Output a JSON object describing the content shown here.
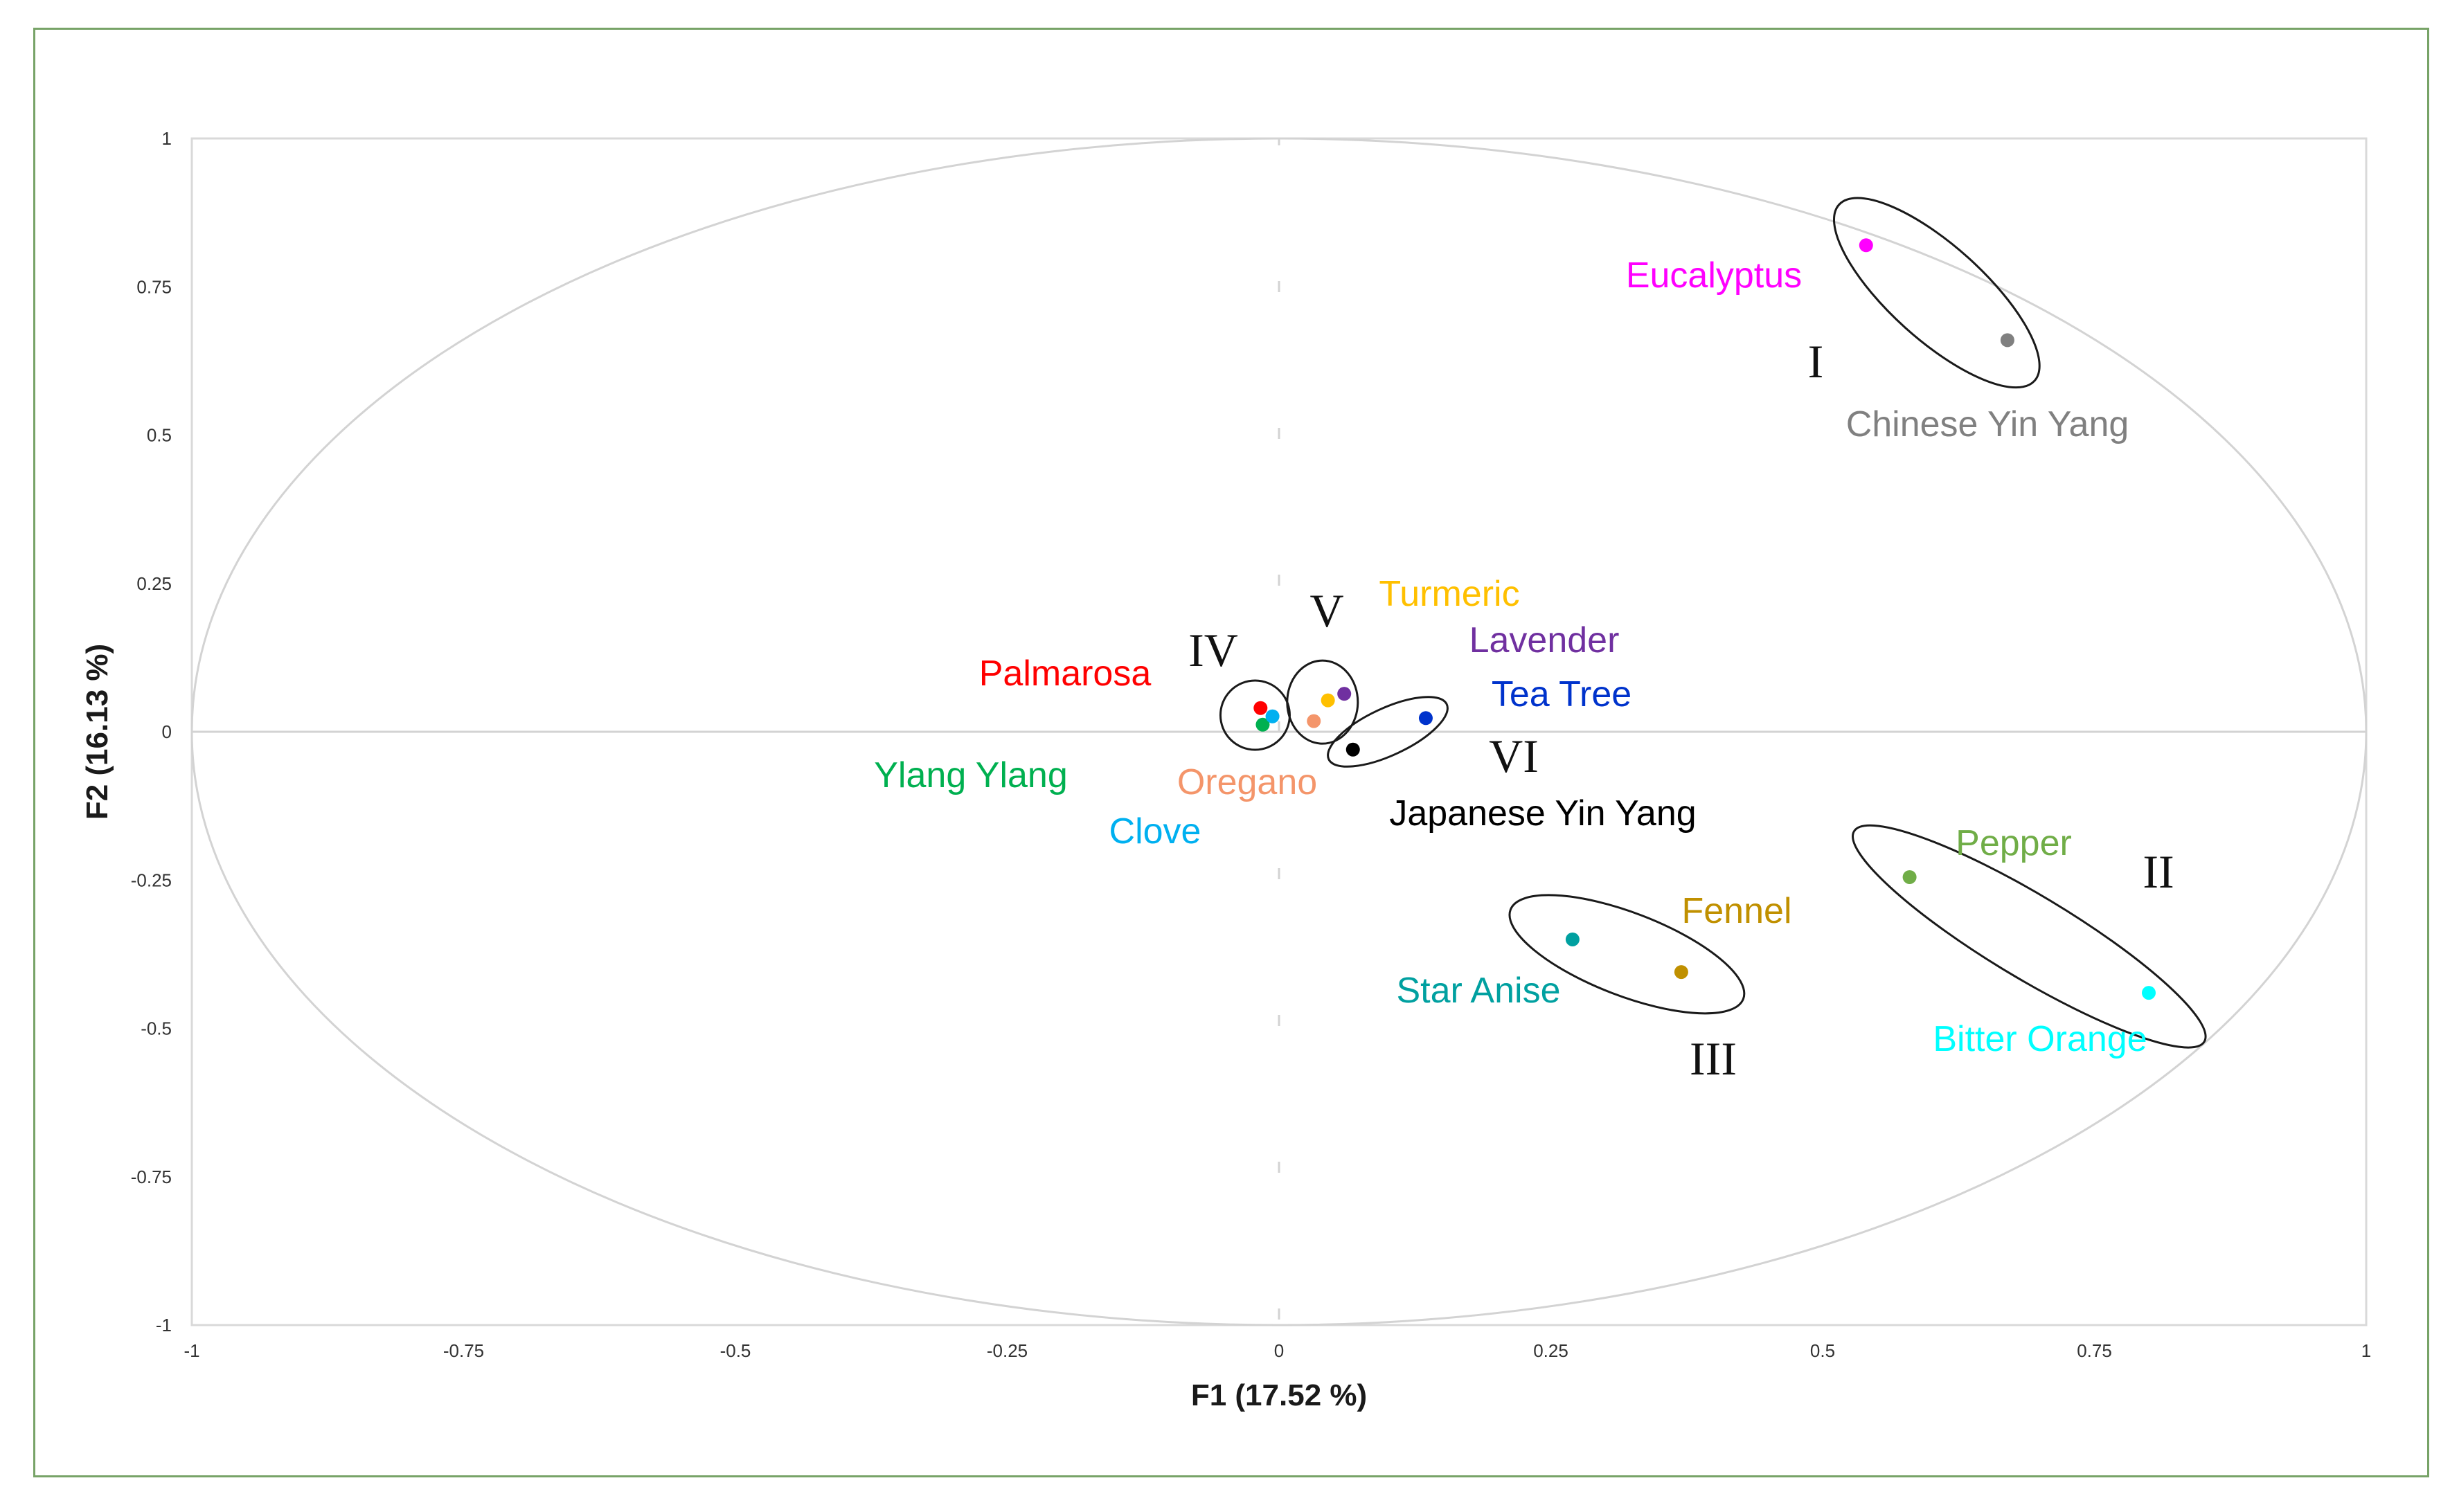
{
  "chart_data": {
    "type": "scatter",
    "title": "",
    "xlabel": "F1 (17.52 %)",
    "ylabel": "F2 (16.13 %)",
    "xlim": [
      -1,
      1
    ],
    "ylim": [
      -1,
      1
    ],
    "x_ticks": [
      "-1",
      "-0.75",
      "-0.5",
      "-0.25",
      "0",
      "0.25",
      "0.5",
      "0.75",
      "1"
    ],
    "y_ticks": [
      "1",
      "0.75",
      "0.5",
      "0.25",
      "0",
      "-0.25",
      "-0.5",
      "-0.75",
      "-1"
    ],
    "correlation_circle": true,
    "points": [
      {
        "label": "Eucalyptus",
        "x": 0.54,
        "y": 0.82,
        "color": "#ff00ff"
      },
      {
        "label": "Chinese Yin Yang",
        "x": 0.67,
        "y": 0.66,
        "color": "#808080"
      },
      {
        "label": "Pepper",
        "x": 0.58,
        "y": -0.245,
        "color": "#70ad47"
      },
      {
        "label": "Bitter Orange",
        "x": 0.8,
        "y": -0.44,
        "color": "#00ffff"
      },
      {
        "label": "Fennel",
        "x": 0.37,
        "y": -0.405,
        "color": "#c09000"
      },
      {
        "label": "Star Anise",
        "x": 0.27,
        "y": -0.35,
        "color": "#00a0a0"
      },
      {
        "label": "Palmarosa",
        "x": -0.017,
        "y": 0.04,
        "color": "#ff0000"
      },
      {
        "label": "Ylang Ylang",
        "x": -0.015,
        "y": 0.012,
        "color": "#00b050"
      },
      {
        "label": "Clove",
        "x": -0.006,
        "y": 0.026,
        "color": "#00b0f0"
      },
      {
        "label": "Oregano",
        "x": 0.032,
        "y": 0.018,
        "color": "#f4956a"
      },
      {
        "label": "Turmeric",
        "x": 0.045,
        "y": 0.053,
        "color": "#ffc000"
      },
      {
        "label": "Lavender",
        "x": 0.06,
        "y": 0.064,
        "color": "#7030a0"
      },
      {
        "label": "Tea Tree",
        "x": 0.135,
        "y": 0.023,
        "color": "#0033cc"
      },
      {
        "label": "Japanese Yin Yang",
        "x": 0.068,
        "y": -0.03,
        "color": "#000000"
      }
    ],
    "groups": [
      "I",
      "II",
      "III",
      "IV",
      "V",
      "VI"
    ]
  }
}
